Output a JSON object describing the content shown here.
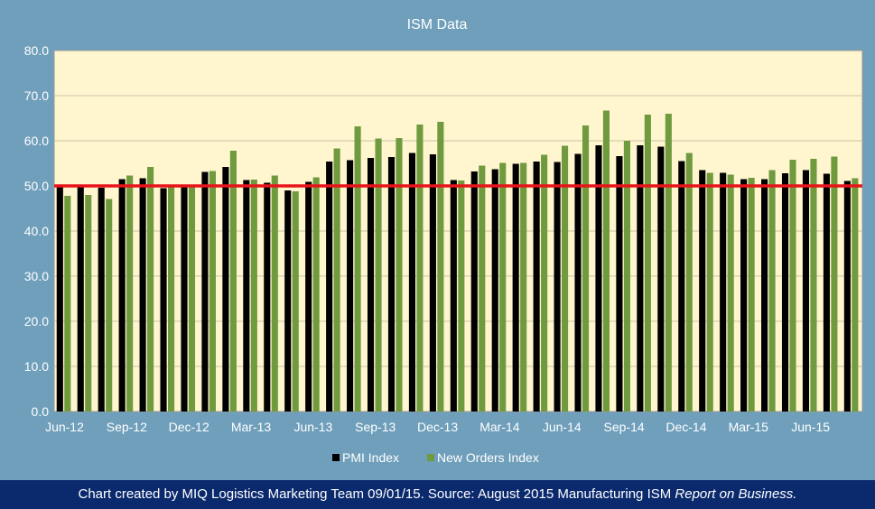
{
  "chart_data": {
    "type": "bar",
    "title": "ISM Data",
    "xlabel": "",
    "ylabel": "",
    "ylim": [
      0,
      80
    ],
    "yticks": [
      "0.0",
      "10.0",
      "20.0",
      "30.0",
      "40.0",
      "50.0",
      "60.0",
      "70.0",
      "80.0"
    ],
    "reference_line": {
      "value": 50,
      "color": "#e8141a"
    },
    "legend_position": "bottom",
    "grid": true,
    "categories": [
      "Jun-12",
      "Jul-12",
      "Aug-12",
      "Sep-12",
      "Oct-12",
      "Nov-12",
      "Dec-12",
      "Jan-13",
      "Feb-13",
      "Mar-13",
      "Apr-13",
      "May-13",
      "Jun-13",
      "Jul-13",
      "Aug-13",
      "Sep-13",
      "Oct-13",
      "Nov-13",
      "Dec-13",
      "Jan-14",
      "Feb-14",
      "Mar-14",
      "Apr-14",
      "May-14",
      "Jun-14",
      "Jul-14",
      "Aug-14",
      "Sep-14",
      "Oct-14",
      "Nov-14",
      "Dec-14",
      "Jan-15",
      "Feb-15",
      "Mar-15",
      "Apr-15",
      "May-15",
      "Jun-15",
      "Jul-15",
      "Aug-15"
    ],
    "tick_labels": [
      {
        "index": 0,
        "label": "Jun-12"
      },
      {
        "index": 3,
        "label": "Sep-12"
      },
      {
        "index": 6,
        "label": "Dec-12"
      },
      {
        "index": 9,
        "label": "Mar-13"
      },
      {
        "index": 12,
        "label": "Jun-13"
      },
      {
        "index": 15,
        "label": "Sep-13"
      },
      {
        "index": 18,
        "label": "Dec-13"
      },
      {
        "index": 21,
        "label": "Mar-14"
      },
      {
        "index": 24,
        "label": "Jun-14"
      },
      {
        "index": 27,
        "label": "Sep-14"
      },
      {
        "index": 30,
        "label": "Dec-14"
      },
      {
        "index": 33,
        "label": "Mar-15"
      },
      {
        "index": 36,
        "label": "Jun-15"
      }
    ],
    "series": [
      {
        "name": "PMI Index",
        "color": "#000000",
        "values": [
          49.7,
          49.8,
          49.6,
          51.5,
          51.7,
          49.5,
          50.2,
          53.1,
          54.2,
          51.3,
          50.7,
          49.0,
          50.9,
          55.4,
          55.7,
          56.2,
          56.4,
          57.3,
          57.0,
          51.3,
          53.2,
          53.7,
          54.9,
          55.4,
          55.3,
          57.1,
          59.0,
          56.6,
          59.0,
          58.7,
          55.5,
          53.5,
          52.9,
          51.5,
          51.5,
          52.8,
          53.5,
          52.7,
          51.1
        ]
      },
      {
        "name": "New Orders Index",
        "color": "#6f9a3e",
        "values": [
          47.8,
          48.0,
          47.1,
          52.3,
          54.2,
          50.3,
          50.0,
          53.3,
          57.8,
          51.4,
          52.3,
          48.8,
          51.9,
          58.3,
          63.2,
          60.5,
          60.6,
          63.6,
          64.2,
          51.2,
          54.5,
          55.1,
          55.1,
          56.9,
          58.9,
          63.4,
          66.7,
          60.0,
          65.8,
          66.0,
          57.3,
          52.9,
          52.5,
          51.8,
          53.5,
          55.8,
          56.0,
          56.5,
          51.7
        ]
      }
    ]
  },
  "footer": {
    "text_main": "Chart created by MIQ Logistics Marketing Team 09/01/15. Source: August 2015 Manufacturing ISM ",
    "text_italic": "Report on Business."
  }
}
